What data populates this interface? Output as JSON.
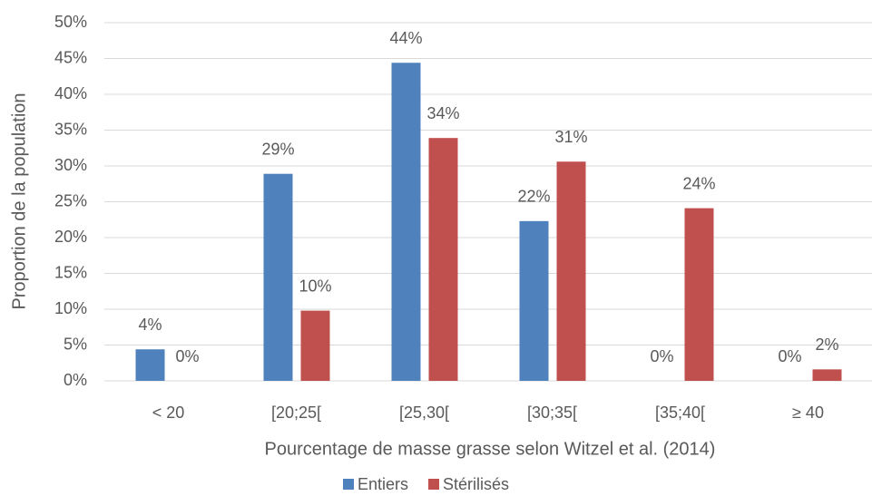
{
  "chart_data": {
    "type": "bar",
    "x_label": "Pourcentage de masse grasse selon Witzel et al. (2014)",
    "y_label": "Proportion de la population",
    "categories": [
      "< 20",
      "[20;25[",
      "[25,30[",
      "[30;35[",
      "[35;40[",
      "≥ 40"
    ],
    "series": [
      {
        "name": "Entiers",
        "color": "#4f81bd",
        "values": [
          4.4,
          28.9,
          44.4,
          22.3,
          0,
          0
        ],
        "value_labels": [
          "4%",
          "29%",
          "44%",
          "22%",
          "0%",
          "0%"
        ]
      },
      {
        "name": "Stérilisés",
        "color": "#c0504d",
        "values": [
          0,
          9.8,
          33.9,
          30.6,
          24.1,
          1.6
        ],
        "value_labels": [
          "0%",
          "10%",
          "34%",
          "31%",
          "24%",
          "2%"
        ]
      }
    ],
    "ylim": [
      0,
      50
    ],
    "yticks": [
      {
        "value": 0,
        "label": "0%"
      },
      {
        "value": 5,
        "label": "5%"
      },
      {
        "value": 10,
        "label": "10%"
      },
      {
        "value": 15,
        "label": "15%"
      },
      {
        "value": 20,
        "label": "20%"
      },
      {
        "value": 25,
        "label": "25%"
      },
      {
        "value": 30,
        "label": "30%"
      },
      {
        "value": 35,
        "label": "35%"
      },
      {
        "value": 40,
        "label": "40%"
      },
      {
        "value": 45,
        "label": "45%"
      },
      {
        "value": 50,
        "label": "50%"
      }
    ],
    "grid": true,
    "legend": "bottom"
  }
}
